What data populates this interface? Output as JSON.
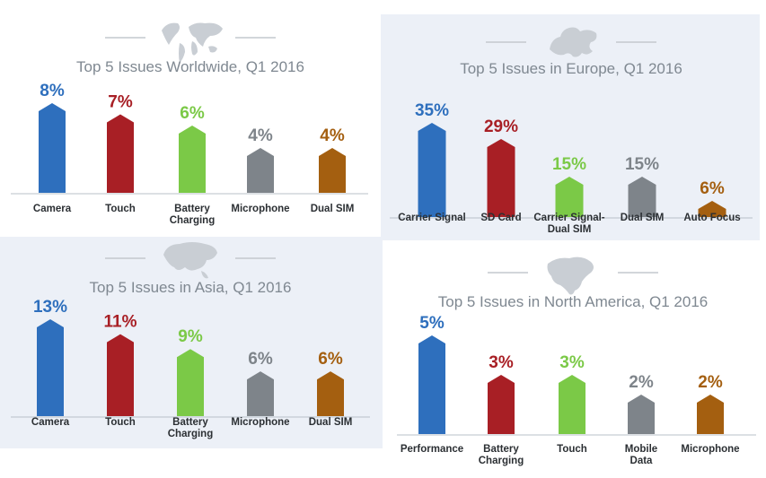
{
  "colors": {
    "blue": "#2e6fbd",
    "red": "#a81f25",
    "green": "#7bc947",
    "gray": "#7e848a",
    "brown": "#a45f10"
  },
  "chart_data": [
    {
      "type": "bar",
      "title": "Top 5 Issues Worldwide, Q1 2016",
      "icon": "world-map-icon",
      "background": "#ffffff",
      "categories": [
        [
          "Camera"
        ],
        [
          "Touch"
        ],
        [
          "Battery",
          "Charging"
        ],
        [
          "Microphone"
        ],
        [
          "Dual SIM"
        ]
      ],
      "values": [
        8,
        7,
        6,
        4,
        4
      ],
      "value_labels": [
        "8%",
        "7%",
        "6%",
        "4%",
        "4%"
      ],
      "bar_colors": [
        "blue",
        "red",
        "green",
        "gray",
        "brown"
      ],
      "ylim": [
        0,
        8
      ],
      "grid": false
    },
    {
      "type": "bar",
      "title": "Top 5 Issues in Europe, Q1 2016",
      "icon": "europe-map-icon",
      "background": "#ecf0f7",
      "categories": [
        [
          "Carrier Signal"
        ],
        [
          "SD Card"
        ],
        [
          "Carrier Signal-",
          "Dual SIM"
        ],
        [
          "Dual SIM"
        ],
        [
          "Auto Focus"
        ]
      ],
      "values": [
        35,
        29,
        15,
        15,
        6
      ],
      "value_labels": [
        "35%",
        "29%",
        "15%",
        "15%",
        "6%"
      ],
      "bar_colors": [
        "blue",
        "red",
        "green",
        "gray",
        "brown"
      ],
      "ylim": [
        0,
        35
      ],
      "grid": false
    },
    {
      "type": "bar",
      "title": "Top 5 Issues in Asia, Q1 2016",
      "icon": "asia-map-icon",
      "background": "#ecf0f7",
      "categories": [
        [
          "Camera"
        ],
        [
          "Touch"
        ],
        [
          "Battery",
          "Charging"
        ],
        [
          "Microphone"
        ],
        [
          "Dual SIM"
        ]
      ],
      "values": [
        13,
        11,
        9,
        6,
        6
      ],
      "value_labels": [
        "13%",
        "11%",
        "9%",
        "6%",
        "6%"
      ],
      "bar_colors": [
        "blue",
        "red",
        "green",
        "gray",
        "brown"
      ],
      "ylim": [
        0,
        13
      ],
      "grid": false
    },
    {
      "type": "bar",
      "title": "Top 5 Issues in North America, Q1 2016",
      "icon": "north-america-map-icon",
      "background": "#ffffff",
      "categories": [
        [
          "Performance"
        ],
        [
          "Battery",
          "Charging"
        ],
        [
          "Touch"
        ],
        [
          "Mobile",
          "Data"
        ],
        [
          "Microphone"
        ]
      ],
      "values": [
        5,
        3,
        3,
        2,
        2
      ],
      "value_labels": [
        "5%",
        "3%",
        "3%",
        "2%",
        "2%"
      ],
      "bar_colors": [
        "blue",
        "red",
        "green",
        "gray",
        "brown"
      ],
      "ylim": [
        0,
        5
      ],
      "grid": false
    }
  ]
}
